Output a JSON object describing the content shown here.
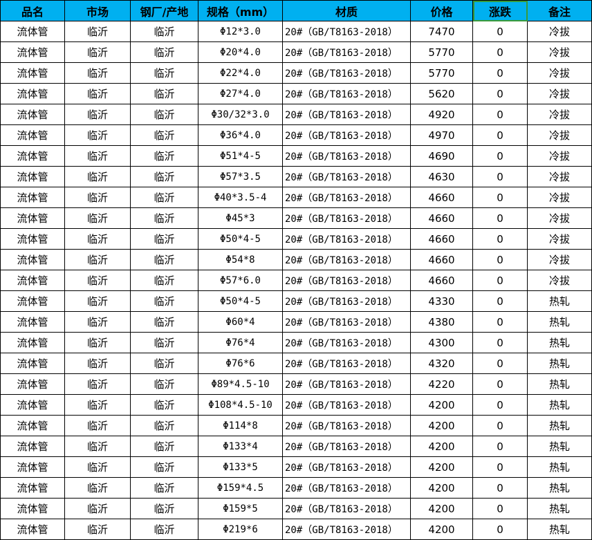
{
  "header_color": "#00B0F0",
  "columns": [
    "品名",
    "市场",
    "钢厂/产地",
    "规格（mm）",
    "材质",
    "价格",
    "涨跌",
    "备注"
  ],
  "rows": [
    [
      "流体管",
      "临沂",
      "临沂",
      "Φ12*3.0",
      "20#（GB/T8163-2018）",
      "7470",
      "0",
      "冷拔"
    ],
    [
      "流体管",
      "临沂",
      "临沂",
      "Φ20*4.0",
      "20#（GB/T8163-2018）",
      "5770",
      "0",
      "冷拔"
    ],
    [
      "流体管",
      "临沂",
      "临沂",
      "Φ22*4.0",
      "20#（GB/T8163-2018）",
      "5770",
      "0",
      "冷拔"
    ],
    [
      "流体管",
      "临沂",
      "临沂",
      "Φ27*4.0",
      "20#（GB/T8163-2018）",
      "5620",
      "0",
      "冷拔"
    ],
    [
      "流体管",
      "临沂",
      "临沂",
      "Φ30/32*3.0",
      "20#（GB/T8163-2018）",
      "4920",
      "0",
      "冷拔"
    ],
    [
      "流体管",
      "临沂",
      "临沂",
      "Φ36*4.0",
      "20#（GB/T8163-2018）",
      "4970",
      "0",
      "冷拔"
    ],
    [
      "流体管",
      "临沂",
      "临沂",
      "Φ51*4-5",
      "20#（GB/T8163-2018）",
      "4690",
      "0",
      "冷拔"
    ],
    [
      "流体管",
      "临沂",
      "临沂",
      "Φ57*3.5",
      "20#（GB/T8163-2018）",
      "4630",
      "0",
      "冷拔"
    ],
    [
      "流体管",
      "临沂",
      "临沂",
      "Φ40*3.5-4",
      "20#（GB/T8163-2018）",
      "4660",
      "0",
      "冷拔"
    ],
    [
      "流体管",
      "临沂",
      "临沂",
      "Φ45*3",
      "20#（GB/T8163-2018）",
      "4660",
      "0",
      "冷拔"
    ],
    [
      "流体管",
      "临沂",
      "临沂",
      "Φ50*4-5",
      "20#（GB/T8163-2018）",
      "4660",
      "0",
      "冷拔"
    ],
    [
      "流体管",
      "临沂",
      "临沂",
      "Φ54*8",
      "20#（GB/T8163-2018）",
      "4660",
      "0",
      "冷拔"
    ],
    [
      "流体管",
      "临沂",
      "临沂",
      "Φ57*6.0",
      "20#（GB/T8163-2018）",
      "4660",
      "0",
      "冷拔"
    ],
    [
      "流体管",
      "临沂",
      "临沂",
      "Φ50*4-5",
      "20#（GB/T8163-2018）",
      "4330",
      "0",
      "热轧"
    ],
    [
      "流体管",
      "临沂",
      "临沂",
      "Φ60*4",
      "20#（GB/T8163-2018）",
      "4380",
      "0",
      "热轧"
    ],
    [
      "流体管",
      "临沂",
      "临沂",
      "Φ76*4",
      "20#（GB/T8163-2018）",
      "4300",
      "0",
      "热轧"
    ],
    [
      "流体管",
      "临沂",
      "临沂",
      "Φ76*6",
      "20#（GB/T8163-2018）",
      "4320",
      "0",
      "热轧"
    ],
    [
      "流体管",
      "临沂",
      "临沂",
      "Φ89*4.5-10",
      "20#（GB/T8163-2018）",
      "4220",
      "0",
      "热轧"
    ],
    [
      "流体管",
      "临沂",
      "临沂",
      "Φ108*4.5-10",
      "20#（GB/T8163-2018）",
      "4200",
      "0",
      "热轧"
    ],
    [
      "流体管",
      "临沂",
      "临沂",
      "Φ114*8",
      "20#（GB/T8163-2018）",
      "4200",
      "0",
      "热轧"
    ],
    [
      "流体管",
      "临沂",
      "临沂",
      "Φ133*4",
      "20#（GB/T8163-2018）",
      "4200",
      "0",
      "热轧"
    ],
    [
      "流体管",
      "临沂",
      "临沂",
      "Φ133*5",
      "20#（GB/T8163-2018）",
      "4200",
      "0",
      "热轧"
    ],
    [
      "流体管",
      "临沂",
      "临沂",
      "Φ159*4.5",
      "20#（GB/T8163-2018）",
      "4200",
      "0",
      "热轧"
    ],
    [
      "流体管",
      "临沂",
      "临沂",
      "Φ159*5",
      "20#（GB/T8163-2018）",
      "4200",
      "0",
      "热轧"
    ],
    [
      "流体管",
      "临沂",
      "临沂",
      "Φ219*6",
      "20#（GB/T8163-2018）",
      "4200",
      "0",
      "热轧"
    ]
  ]
}
